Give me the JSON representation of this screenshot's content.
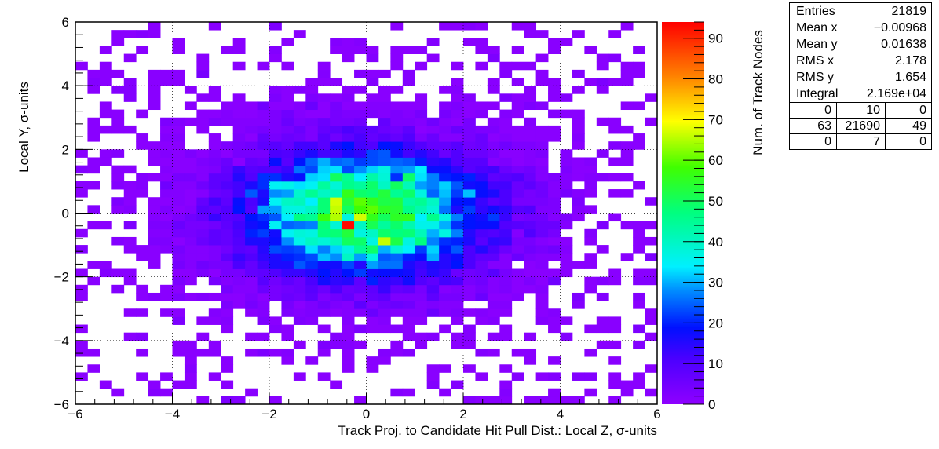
{
  "chart_data": {
    "type": "heatmap",
    "title": "",
    "xlabel": "Track Proj. to Candidate Hit Pull Dist.: Local Z, σ-units",
    "ylabel": "Local Y, σ-units",
    "zlabel": "Num. of Track Nodes",
    "xlim": [
      -6,
      6
    ],
    "ylim": [
      -6,
      6
    ],
    "zlim": [
      0,
      94
    ],
    "bins": {
      "nx": 48,
      "ny": 48
    },
    "distribution": {
      "shape": "2D Gaussian",
      "mean_x": -0.00968,
      "mean_y": 0.01638,
      "rms_x": 2.178,
      "rms_y": 1.654,
      "peak": 93,
      "peak_at": [
        -0.4,
        -0.35
      ]
    },
    "x_ticks": [
      "−6",
      "−4",
      "−2",
      "0",
      "2",
      "4",
      "6"
    ],
    "y_ticks": [
      "−6",
      "−4",
      "−2",
      "0",
      "2",
      "4",
      "6"
    ],
    "z_ticks": [
      "0",
      "10",
      "20",
      "30",
      "40",
      "50",
      "60",
      "70",
      "80",
      "90"
    ],
    "grid": true,
    "colormap": "ROOT kBird-like (purple→blue→cyan→green→yellow→red)"
  },
  "stats": {
    "entries_label": "Entries",
    "entries": "21819",
    "mean_x_label": "Mean x",
    "mean_x": "−0.00968",
    "mean_y_label": "Mean y",
    "mean_y": "0.01638",
    "rms_x_label": "RMS x",
    "rms_x": "2.178",
    "rms_y_label": "RMS y",
    "rms_y": "1.654",
    "integral_label": "Integral",
    "integral": "2.169e+04",
    "overflow": [
      [
        "0",
        "10",
        "0"
      ],
      [
        "63",
        "21690",
        "49"
      ],
      [
        "0",
        "7",
        "0"
      ]
    ]
  }
}
